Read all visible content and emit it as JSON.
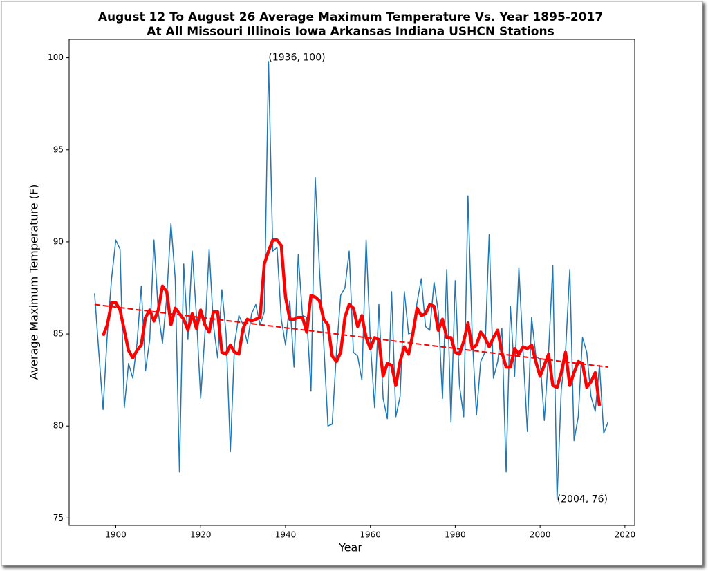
{
  "chart_data": {
    "type": "line",
    "title": [
      "August 12 To August 26 Average Maximum Temperature Vs. Year 1895-2017",
      "At All Missouri Illinois Iowa Arkansas Indiana USHCN Stations"
    ],
    "xlabel": "Year",
    "ylabel": "Average Maximum Temperature (F)",
    "x": [
      1895,
      1896,
      1897,
      1898,
      1899,
      1900,
      1901,
      1902,
      1903,
      1904,
      1905,
      1906,
      1907,
      1908,
      1909,
      1910,
      1911,
      1912,
      1913,
      1914,
      1915,
      1916,
      1917,
      1918,
      1919,
      1920,
      1921,
      1922,
      1923,
      1924,
      1925,
      1926,
      1927,
      1928,
      1929,
      1930,
      1931,
      1932,
      1933,
      1934,
      1935,
      1936,
      1937,
      1938,
      1939,
      1940,
      1941,
      1942,
      1943,
      1944,
      1945,
      1946,
      1947,
      1948,
      1949,
      1950,
      1951,
      1952,
      1953,
      1954,
      1955,
      1956,
      1957,
      1958,
      1959,
      1960,
      1961,
      1962,
      1963,
      1964,
      1965,
      1966,
      1967,
      1968,
      1969,
      1970,
      1971,
      1972,
      1973,
      1974,
      1975,
      1976,
      1977,
      1978,
      1979,
      1980,
      1981,
      1982,
      1983,
      1984,
      1985,
      1986,
      1987,
      1988,
      1989,
      1990,
      1991,
      1992,
      1993,
      1994,
      1995,
      1996,
      1997,
      1998,
      1999,
      2000,
      2001,
      2002,
      2003,
      2004,
      2005,
      2006,
      2007,
      2008,
      2009,
      2010,
      2011,
      2012,
      2013,
      2014,
      2015,
      2016
    ],
    "series": [
      {
        "color": "#1f77b4",
        "width": 1.5,
        "values": [
          87.2,
          84,
          80.9,
          85,
          88,
          90.1,
          89.6,
          81,
          83.4,
          82.6,
          84.5,
          87.6,
          83,
          84.7,
          90.1,
          86.2,
          84.5,
          87,
          91,
          88,
          77.5,
          88.8,
          84.7,
          89.5,
          86,
          81.5,
          85,
          89.6,
          85.5,
          83.7,
          87.4,
          85,
          78.6,
          84.5,
          86,
          85.5,
          84.5,
          86.1,
          86.6,
          85.5,
          86.2,
          99.8,
          89.5,
          89.7,
          85.8,
          84.4,
          86.8,
          83.2,
          89.3,
          86,
          85.9,
          81.9,
          93.5,
          88.5,
          84.5,
          80,
          80.1,
          84,
          87.1,
          87.5,
          89.5,
          84,
          83.8,
          82.5,
          90.1,
          84.5,
          81,
          86.6,
          81.5,
          80.4,
          87.3,
          80.5,
          81.6,
          87.3,
          85,
          85.1,
          86.7,
          88,
          85.4,
          85.2,
          87.8,
          86.2,
          81.5,
          88.5,
          80.2,
          87.9,
          82.2,
          80.5,
          92.5,
          84.9,
          80.6,
          83.5,
          84,
          90.4,
          82.6,
          83.5,
          85.3,
          77.5,
          86.5,
          82.7,
          88.6,
          84,
          79.7,
          85.9,
          83.8,
          83.6,
          80.3,
          84,
          88.7,
          76,
          82,
          84,
          88.5,
          79.2,
          80.5,
          84.8,
          84,
          81.6,
          80.8,
          83.3,
          79.6,
          80.2
        ]
      },
      {
        "color": "#ff0000",
        "width": 4.5,
        "values": [
          null,
          null,
          84.9,
          85.5,
          86.7,
          86.7,
          86.3,
          85.2,
          84.1,
          83.7,
          84.1,
          84.4,
          85.9,
          86.3,
          85.7,
          86.3,
          87.6,
          87.3,
          85.5,
          86.4,
          86.1,
          85.8,
          85.2,
          86.1,
          85.3,
          86.3,
          85.5,
          85.1,
          86.2,
          86.2,
          84,
          83.9,
          84.4,
          84,
          83.9,
          85.3,
          85.8,
          85.7,
          85.8,
          85.9,
          88.8,
          89.5,
          90.1,
          90.1,
          89.8,
          87,
          85.8,
          85.8,
          85.9,
          85.9,
          85.1,
          87.1,
          87,
          86.8,
          85.8,
          85.5,
          83.8,
          83.5,
          84,
          85.9,
          86.6,
          86.4,
          85.4,
          86,
          84.8,
          84.2,
          84.8,
          84.7,
          82.7,
          83.4,
          83.3,
          82.2,
          83.5,
          84.3,
          83.9,
          85,
          86.4,
          86,
          86.1,
          86.6,
          86.5,
          85.2,
          85.8,
          84.8,
          84.8,
          84,
          83.9,
          84.6,
          85.6,
          84.2,
          84.4,
          85.1,
          84.8,
          84.3,
          84.8,
          85.2,
          84,
          83.2,
          83.2,
          84.2,
          83.9,
          84.3,
          84.2,
          84.4,
          83.5,
          82.7,
          83.3,
          83.9,
          82.2,
          82.1,
          82.9,
          84,
          82.2,
          82.9,
          83.5,
          83.4,
          82.1,
          82.4,
          82.9,
          81.1,
          null,
          null
        ]
      }
    ],
    "trend": {
      "x": [
        1895,
        2016
      ],
      "values": [
        86.6,
        83.2
      ],
      "color": "#ff0000",
      "dashed": true
    },
    "annotations": [
      {
        "text": "(1936, 100)",
        "x": 1936,
        "y": 100
      },
      {
        "text": "(2004, 76)",
        "x": 2004,
        "y": 76
      }
    ],
    "xlim": [
      1889,
      2022.3
    ],
    "ylim": [
      74.6,
      101
    ],
    "xticks": [
      1900,
      1920,
      1940,
      1960,
      1980,
      2000,
      2020
    ],
    "yticks": [
      75,
      80,
      85,
      90,
      95,
      100
    ]
  }
}
